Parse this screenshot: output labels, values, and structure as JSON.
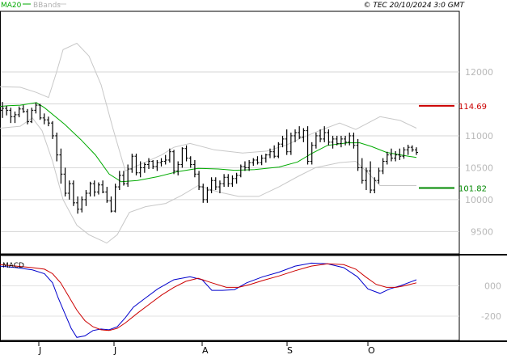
{
  "header": {
    "legend": [
      {
        "label": "MA20",
        "color": "#00aa00"
      },
      {
        "label": "BBands",
        "color": "#b0b0b0"
      }
    ],
    "copyright": "© TEC 20/10/2024 3:0 GMT"
  },
  "chart_data": [
    {
      "type": "candlestick",
      "title": "",
      "ylim": [
        9150,
        12950
      ],
      "y_ticks": [
        {
          "value": 12000,
          "label": "12000"
        },
        {
          "value": 11500,
          "label": ""
        },
        {
          "value": 11000,
          "label": "11000"
        },
        {
          "value": 10500,
          "label": "10500"
        },
        {
          "value": 10000,
          "label": "10000"
        },
        {
          "value": 9500,
          "label": "9500"
        }
      ],
      "x_ticks": [
        "J",
        "J",
        "A",
        "S",
        "O"
      ],
      "grid": true,
      "bars": [
        [
          11400,
          11530,
          11280,
          11430
        ],
        [
          11430,
          11470,
          11320,
          11400
        ],
        [
          11400,
          11440,
          11200,
          11300
        ],
        [
          11300,
          11380,
          11200,
          11330
        ],
        [
          11330,
          11460,
          11290,
          11420
        ],
        [
          11420,
          11480,
          11360,
          11380
        ],
        [
          11380,
          11420,
          11180,
          11220
        ],
        [
          11220,
          11440,
          11200,
          11400
        ],
        [
          11400,
          11520,
          11350,
          11480
        ],
        [
          11480,
          11500,
          11250,
          11280
        ],
        [
          11280,
          11350,
          11180,
          11250
        ],
        [
          11250,
          11300,
          11150,
          11200
        ],
        [
          11200,
          11230,
          10950,
          11000
        ],
        [
          11000,
          11050,
          10600,
          10700
        ],
        [
          10700,
          10800,
          10250,
          10400
        ],
        [
          10400,
          10500,
          10050,
          10100
        ],
        [
          10100,
          10300,
          10000,
          10250
        ],
        [
          10250,
          10300,
          9900,
          9950
        ],
        [
          9950,
          10050,
          9780,
          9850
        ],
        [
          9850,
          10050,
          9800,
          10000
        ],
        [
          10000,
          10150,
          9900,
          10100
        ],
        [
          10100,
          10280,
          10050,
          10250
        ],
        [
          10250,
          10300,
          10050,
          10120
        ],
        [
          10120,
          10270,
          10080,
          10230
        ],
        [
          10230,
          10300,
          10100,
          10120
        ],
        [
          10120,
          10200,
          9950,
          9980
        ],
        [
          9980,
          10050,
          9800,
          9820
        ],
        [
          9820,
          10250,
          9800,
          10200
        ],
        [
          10200,
          10450,
          10150,
          10380
        ],
        [
          10380,
          10450,
          10220,
          10250
        ],
        [
          10250,
          10550,
          10200,
          10480
        ],
        [
          10480,
          10720,
          10420,
          10680
        ],
        [
          10680,
          10720,
          10380,
          10420
        ],
        [
          10420,
          10600,
          10350,
          10500
        ],
        [
          10500,
          10580,
          10420,
          10550
        ],
        [
          10550,
          10650,
          10480,
          10600
        ],
        [
          10600,
          10620,
          10480,
          10520
        ],
        [
          10520,
          10620,
          10450,
          10580
        ],
        [
          10580,
          10650,
          10520,
          10600
        ],
        [
          10600,
          10700,
          10550,
          10620
        ],
        [
          10620,
          10800,
          10580,
          10750
        ],
        [
          10750,
          10780,
          10400,
          10450
        ],
        [
          10450,
          10600,
          10380,
          10550
        ],
        [
          10550,
          10820,
          10500,
          10800
        ],
        [
          10800,
          10850,
          10600,
          10650
        ],
        [
          10650,
          10680,
          10500,
          10550
        ],
        [
          10550,
          10620,
          10350,
          10400
        ],
        [
          10400,
          10450,
          10150,
          10200
        ],
        [
          10200,
          10250,
          9950,
          10000
        ],
        [
          10000,
          10200,
          9950,
          10150
        ],
        [
          10150,
          10350,
          10100,
          10300
        ],
        [
          10300,
          10350,
          10150,
          10200
        ],
        [
          10200,
          10300,
          10100,
          10250
        ],
        [
          10250,
          10400,
          10200,
          10350
        ],
        [
          10350,
          10400,
          10200,
          10250
        ],
        [
          10250,
          10380,
          10200,
          10330
        ],
        [
          10330,
          10420,
          10250,
          10380
        ],
        [
          10380,
          10550,
          10350,
          10520
        ],
        [
          10520,
          10600,
          10450,
          10500
        ],
        [
          10500,
          10620,
          10450,
          10580
        ],
        [
          10580,
          10650,
          10530,
          10620
        ],
        [
          10620,
          10680,
          10550,
          10580
        ],
        [
          10580,
          10700,
          10540,
          10650
        ],
        [
          10650,
          10720,
          10580,
          10700
        ],
        [
          10700,
          10800,
          10650,
          10750
        ],
        [
          10750,
          10850,
          10650,
          10680
        ],
        [
          10680,
          10900,
          10650,
          10870
        ],
        [
          10870,
          11000,
          10820,
          10950
        ],
        [
          10950,
          11100,
          10700,
          10750
        ],
        [
          10750,
          11050,
          10700,
          11000
        ],
        [
          11000,
          11100,
          10900,
          11050
        ],
        [
          11050,
          11150,
          10950,
          10980
        ],
        [
          10980,
          11120,
          10900,
          11080
        ],
        [
          11080,
          11150,
          10550,
          10600
        ],
        [
          10600,
          10900,
          10550,
          10850
        ],
        [
          10850,
          11050,
          10800,
          11000
        ],
        [
          11000,
          11100,
          10900,
          10950
        ],
        [
          10950,
          11150,
          10900,
          11050
        ],
        [
          11050,
          11100,
          10850,
          10900
        ],
        [
          10900,
          11000,
          10800,
          10950
        ],
        [
          10950,
          11000,
          10850,
          10880
        ],
        [
          10880,
          11000,
          10820,
          10950
        ],
        [
          10950,
          11000,
          10850,
          10900
        ],
        [
          10900,
          11050,
          10850,
          11000
        ],
        [
          11000,
          11050,
          10800,
          10850
        ],
        [
          10850,
          10950,
          10450,
          10500
        ],
        [
          10500,
          10650,
          10250,
          10300
        ],
        [
          10300,
          10500,
          10150,
          10450
        ],
        [
          10450,
          10600,
          10100,
          10150
        ],
        [
          10150,
          10350,
          10100,
          10300
        ],
        [
          10300,
          10500,
          10250,
          10450
        ],
        [
          10450,
          10650,
          10400,
          10600
        ],
        [
          10600,
          10750,
          10550,
          10700
        ],
        [
          10700,
          10800,
          10600,
          10650
        ],
        [
          10650,
          10760,
          10600,
          10700
        ],
        [
          10700,
          10800,
          10620,
          10680
        ],
        [
          10680,
          10820,
          10640,
          10780
        ],
        [
          10780,
          10860,
          10700,
          10820
        ],
        [
          10820,
          10850,
          10750,
          10780
        ],
        [
          10780,
          10820,
          10700,
          10740
        ]
      ],
      "ma20": [
        [
          0,
          11460
        ],
        [
          10,
          11470
        ],
        [
          25,
          11480
        ],
        [
          45,
          11520
        ],
        [
          55,
          11440
        ],
        [
          80,
          11180
        ],
        [
          100,
          10940
        ],
        [
          118,
          10700
        ],
        [
          135,
          10400
        ],
        [
          150,
          10280
        ],
        [
          170,
          10300
        ],
        [
          195,
          10360
        ],
        [
          220,
          10440
        ],
        [
          245,
          10490
        ],
        [
          270,
          10480
        ],
        [
          290,
          10460
        ],
        [
          315,
          10470
        ],
        [
          345,
          10510
        ],
        [
          368,
          10590
        ],
        [
          385,
          10720
        ],
        [
          405,
          10850
        ],
        [
          430,
          10890
        ],
        [
          445,
          10890
        ],
        [
          460,
          10830
        ],
        [
          478,
          10740
        ],
        [
          500,
          10690
        ],
        [
          515,
          10660
        ]
      ],
      "bb_upper": [
        [
          0,
          11770
        ],
        [
          25,
          11760
        ],
        [
          45,
          11680
        ],
        [
          60,
          11600
        ],
        [
          70,
          12000
        ],
        [
          78,
          12350
        ],
        [
          95,
          12450
        ],
        [
          110,
          12250
        ],
        [
          125,
          11800
        ],
        [
          140,
          11100
        ],
        [
          155,
          10450
        ],
        [
          175,
          10560
        ],
        [
          200,
          10700
        ],
        [
          215,
          10820
        ],
        [
          235,
          10880
        ],
        [
          265,
          10780
        ],
        [
          300,
          10730
        ],
        [
          330,
          10760
        ],
        [
          355,
          10860
        ],
        [
          370,
          10950
        ],
        [
          395,
          11080
        ],
        [
          420,
          11200
        ],
        [
          440,
          11100
        ],
        [
          455,
          11200
        ],
        [
          470,
          11300
        ],
        [
          495,
          11240
        ],
        [
          515,
          11120
        ]
      ],
      "bb_lower": [
        [
          0,
          11120
        ],
        [
          25,
          11150
        ],
        [
          40,
          11280
        ],
        [
          52,
          11080
        ],
        [
          65,
          10600
        ],
        [
          78,
          10000
        ],
        [
          95,
          9600
        ],
        [
          110,
          9450
        ],
        [
          132,
          9320
        ],
        [
          145,
          9450
        ],
        [
          160,
          9800
        ],
        [
          180,
          9890
        ],
        [
          205,
          9940
        ],
        [
          225,
          10070
        ],
        [
          245,
          10220
        ],
        [
          270,
          10120
        ],
        [
          295,
          10050
        ],
        [
          320,
          10050
        ],
        [
          345,
          10200
        ],
        [
          368,
          10360
        ],
        [
          390,
          10500
        ],
        [
          420,
          10580
        ],
        [
          440,
          10600
        ],
        [
          455,
          10420
        ],
        [
          470,
          10220
        ],
        [
          495,
          10220
        ],
        [
          515,
          10220
        ]
      ],
      "markers": [
        {
          "value": 11469,
          "label": "114.69",
          "color": "#cc0000"
        },
        {
          "value": 10182,
          "label": "101.82",
          "color": "#008800"
        }
      ]
    },
    {
      "type": "line",
      "title": "",
      "label": "MACD",
      "ylim": [
        -360,
        200
      ],
      "y_ticks": [
        {
          "value": 0,
          "label": "000"
        },
        {
          "value": -200,
          "label": "-200"
        }
      ],
      "series": [
        {
          "color": "#0000cc",
          "points": [
            [
              0,
              130
            ],
            [
              20,
              120
            ],
            [
              40,
              105
            ],
            [
              55,
              80
            ],
            [
              65,
              20
            ],
            [
              72,
              -80
            ],
            [
              80,
              -180
            ],
            [
              88,
              -280
            ],
            [
              95,
              -340
            ],
            [
              105,
              -330
            ],
            [
              115,
              -295
            ],
            [
              125,
              -285
            ],
            [
              135,
              -290
            ],
            [
              145,
              -270
            ],
            [
              155,
              -210
            ],
            [
              165,
              -140
            ],
            [
              180,
              -80
            ],
            [
              195,
              -20
            ],
            [
              215,
              40
            ],
            [
              235,
              60
            ],
            [
              250,
              40
            ],
            [
              262,
              -30
            ],
            [
              275,
              -30
            ],
            [
              290,
              -25
            ],
            [
              305,
              20
            ],
            [
              325,
              60
            ],
            [
              345,
              90
            ],
            [
              365,
              130
            ],
            [
              385,
              150
            ],
            [
              405,
              145
            ],
            [
              425,
              120
            ],
            [
              442,
              60
            ],
            [
              455,
              -20
            ],
            [
              470,
              -50
            ],
            [
              482,
              -20
            ],
            [
              495,
              0
            ],
            [
              515,
              40
            ]
          ]
        },
        {
          "color": "#cc0000",
          "points": [
            [
              0,
              140
            ],
            [
              20,
              130
            ],
            [
              40,
              120
            ],
            [
              55,
              110
            ],
            [
              65,
              80
            ],
            [
              75,
              20
            ],
            [
              85,
              -70
            ],
            [
              95,
              -160
            ],
            [
              105,
              -230
            ],
            [
              115,
              -270
            ],
            [
              125,
              -290
            ],
            [
              135,
              -295
            ],
            [
              145,
              -280
            ],
            [
              155,
              -245
            ],
            [
              170,
              -180
            ],
            [
              185,
              -120
            ],
            [
              200,
              -60
            ],
            [
              215,
              -10
            ],
            [
              230,
              30
            ],
            [
              245,
              50
            ],
            [
              262,
              20
            ],
            [
              280,
              -10
            ],
            [
              295,
              -10
            ],
            [
              310,
              10
            ],
            [
              325,
              35
            ],
            [
              345,
              65
            ],
            [
              365,
              100
            ],
            [
              385,
              130
            ],
            [
              405,
              145
            ],
            [
              425,
              140
            ],
            [
              440,
              110
            ],
            [
              452,
              60
            ],
            [
              465,
              10
            ],
            [
              478,
              -10
            ],
            [
              490,
              -10
            ],
            [
              500,
              0
            ],
            [
              515,
              20
            ]
          ]
        }
      ]
    }
  ]
}
